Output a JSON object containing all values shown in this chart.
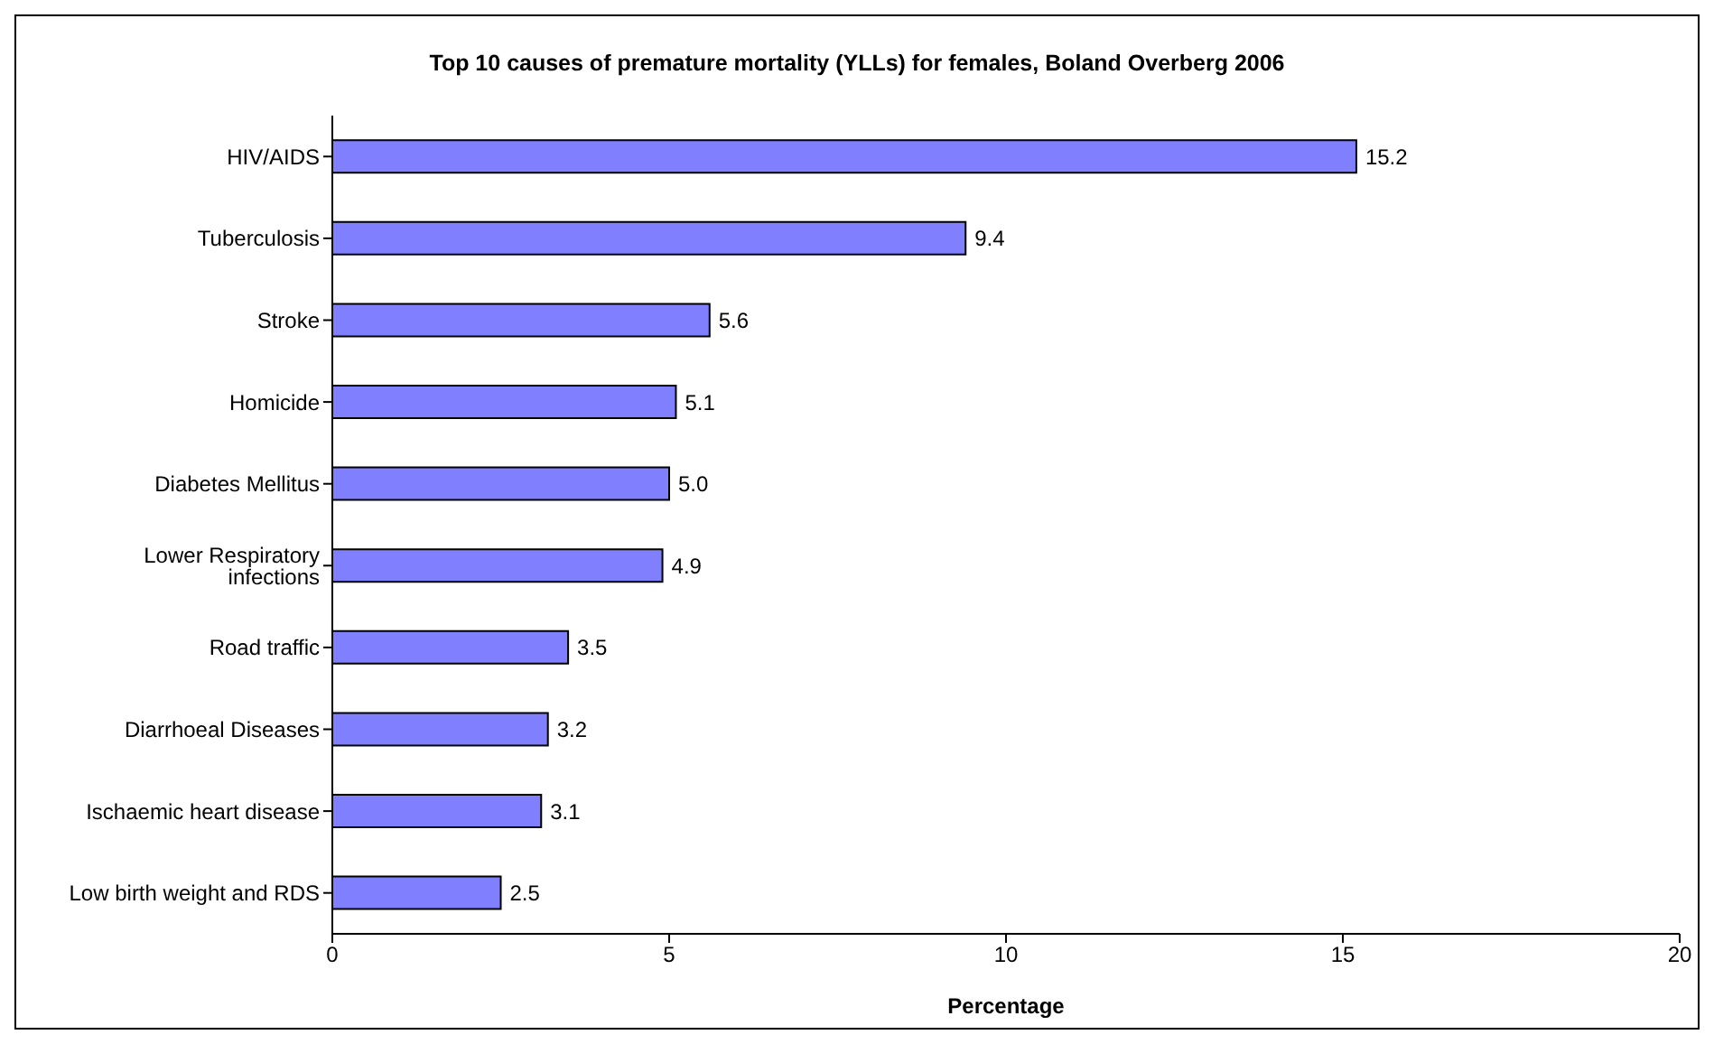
{
  "chart_data": {
    "type": "bar",
    "orientation": "horizontal",
    "title": "Top 10 causes of premature mortality (YLLs) for females, Boland Overberg 2006",
    "xlabel": "Percentage",
    "categories": [
      "HIV/AIDS",
      "Tuberculosis",
      "Stroke",
      "Homicide",
      "Diabetes Mellitus",
      "Lower Respiratory infections",
      "Road traffic",
      "Diarrhoeal Diseases",
      "Ischaemic heart disease",
      "Low birth weight and RDS"
    ],
    "values": [
      15.2,
      9.4,
      5.6,
      5.1,
      5.0,
      4.9,
      3.5,
      3.2,
      3.1,
      2.5
    ],
    "value_labels": [
      "15.2",
      "9.4",
      "5.6",
      "5.1",
      "5.0",
      "4.9",
      "3.5",
      "3.2",
      "3.1",
      "2.5"
    ],
    "color": "#8080ff",
    "xlim": [
      0,
      20
    ],
    "xticks": [
      0,
      5,
      10,
      15,
      20
    ],
    "grid": false,
    "legend": false
  }
}
